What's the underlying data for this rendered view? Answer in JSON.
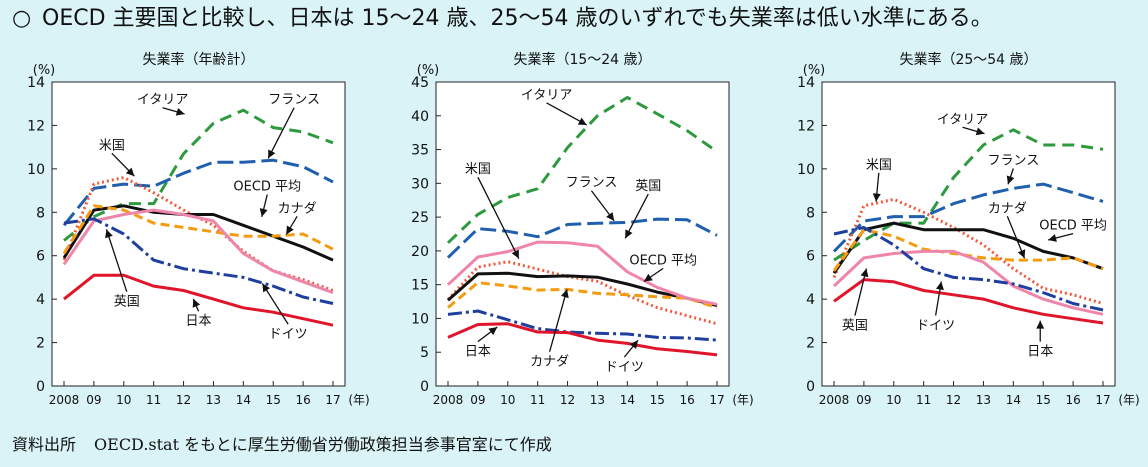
{
  "header": {
    "bullet": "○",
    "text": "OECD 主要国と比較し、日本は 15～24 歳、25～54 歳のいずれでも失業率は低い水準にある。"
  },
  "source": {
    "label": "資料出所",
    "text": "OECD.stat をもとに厚生労働省労働政策担当参事官室にて作成"
  },
  "chart_data": [
    {
      "type": "line",
      "title": "失業率（年齢計）",
      "ylabel": "(%)",
      "x_unit": "(年)",
      "categories": [
        "2008",
        "09",
        "10",
        "11",
        "12",
        "13",
        "14",
        "15",
        "16",
        "17"
      ],
      "ylim": [
        0,
        14
      ],
      "yticks": [
        0,
        2,
        4,
        6,
        8,
        10,
        12,
        14
      ],
      "grid": false,
      "series": [
        {
          "name": "イタリア",
          "color": "#2e9a3e",
          "dash": "12,7",
          "values": [
            6.7,
            7.8,
            8.4,
            8.4,
            10.7,
            12.1,
            12.7,
            11.9,
            11.7,
            11.2
          ]
        },
        {
          "name": "フランス",
          "color": "#1f5fae",
          "dash": "16,6",
          "values": [
            7.4,
            9.1,
            9.3,
            9.2,
            9.8,
            10.3,
            10.3,
            10.4,
            10.1,
            9.4
          ]
        },
        {
          "name": "米国",
          "color": "#ef5a3a",
          "dash": "2,3",
          "values": [
            5.8,
            9.3,
            9.6,
            8.9,
            8.1,
            7.4,
            6.2,
            5.3,
            4.9,
            4.4
          ]
        },
        {
          "name": "OECD 平均",
          "color": "#111111",
          "dash": "",
          "values": [
            5.9,
            8.1,
            8.3,
            8.0,
            7.9,
            7.9,
            7.4,
            6.9,
            6.4,
            5.8
          ]
        },
        {
          "name": "カナダ",
          "color": "#f39c12",
          "dash": "9,5",
          "values": [
            6.1,
            8.3,
            8.1,
            7.5,
            7.3,
            7.1,
            6.9,
            6.9,
            7.0,
            6.3
          ]
        },
        {
          "name": "英国",
          "color": "#ef86aa",
          "dash": "",
          "values": [
            5.6,
            7.6,
            7.9,
            8.1,
            7.9,
            7.6,
            6.1,
            5.3,
            4.8,
            4.3
          ]
        },
        {
          "name": "ドイツ",
          "color": "#1f3f9e",
          "dash": "14,4,3,4",
          "values": [
            7.5,
            7.7,
            7.0,
            5.8,
            5.4,
            5.2,
            5.0,
            4.6,
            4.1,
            3.8
          ]
        },
        {
          "name": "日本",
          "color": "#e0142a",
          "dash": "",
          "values": [
            4.0,
            5.1,
            5.1,
            4.6,
            4.4,
            4.0,
            3.6,
            3.4,
            3.1,
            2.8
          ]
        }
      ],
      "labels": [
        {
          "text": "イタリア",
          "x": 3.3,
          "y": 13.0,
          "ax": 4.1,
          "ay": 12.5
        },
        {
          "text": "フランス",
          "x": 7.7,
          "y": 13.0,
          "ax": 6.8,
          "ay": 10.4
        },
        {
          "text": "米国",
          "x": 1.6,
          "y": 10.9,
          "ax": 2.4,
          "ay": 9.6
        },
        {
          "text": "OECD 平均",
          "x": 6.8,
          "y": 9.0,
          "ax": 6.6,
          "ay": 7.7
        },
        {
          "text": "カナダ",
          "x": 7.8,
          "y": 8.0,
          "ax": 7.4,
          "ay": 6.9
        },
        {
          "text": "英国",
          "x": 2.1,
          "y": 3.7,
          "ax": 1.4,
          "ay": 7.3
        },
        {
          "text": "ドイツ",
          "x": 7.5,
          "y": 2.2,
          "ax": 6.6,
          "ay": 4.8
        },
        {
          "text": "日本",
          "x": 4.5,
          "y": 2.8,
          "ax": 4.3,
          "ay": 4.1
        }
      ]
    },
    {
      "type": "line",
      "title": "失業率（15～24 歳）",
      "ylabel": "(%)",
      "x_unit": "(年)",
      "categories": [
        "2008",
        "09",
        "10",
        "11",
        "12",
        "13",
        "14",
        "15",
        "16",
        "17"
      ],
      "ylim": [
        0,
        45
      ],
      "yticks": [
        0,
        5,
        10,
        15,
        20,
        25,
        30,
        35,
        40,
        45
      ],
      "grid": false,
      "series": [
        {
          "name": "イタリア",
          "color": "#2e9a3e",
          "dash": "12,7",
          "values": [
            21.2,
            25.4,
            27.9,
            29.2,
            35.3,
            40.0,
            42.7,
            40.3,
            37.8,
            34.7
          ]
        },
        {
          "name": "フランス",
          "color": "#1f5fae",
          "dash": "16,6",
          "values": [
            19.0,
            23.3,
            22.9,
            22.1,
            23.9,
            24.1,
            24.2,
            24.7,
            24.6,
            22.3
          ]
        },
        {
          "name": "米国",
          "color": "#ef5a3a",
          "dash": "2,3",
          "values": [
            12.8,
            17.6,
            18.4,
            17.3,
            16.2,
            15.5,
            13.4,
            11.6,
            10.4,
            9.2
          ]
        },
        {
          "name": "OECD 平均",
          "color": "#111111",
          "dash": "",
          "values": [
            12.7,
            16.6,
            16.7,
            16.2,
            16.3,
            16.1,
            15.1,
            13.9,
            13.0,
            11.9
          ]
        },
        {
          "name": "カナダ",
          "color": "#f39c12",
          "dash": "9,5",
          "values": [
            11.6,
            15.3,
            14.8,
            14.2,
            14.3,
            13.7,
            13.5,
            13.2,
            13.0,
            11.6
          ]
        },
        {
          "name": "英国",
          "color": "#ef86aa",
          "dash": "",
          "values": [
            15.0,
            19.1,
            19.9,
            21.3,
            21.2,
            20.7,
            16.9,
            14.6,
            13.0,
            12.1
          ]
        },
        {
          "name": "ドイツ",
          "color": "#1f3f9e",
          "dash": "14,4,3,4",
          "values": [
            10.6,
            11.1,
            9.8,
            8.5,
            8.0,
            7.8,
            7.7,
            7.2,
            7.1,
            6.8
          ]
        },
        {
          "name": "日本",
          "color": "#e0142a",
          "dash": "",
          "values": [
            7.2,
            9.1,
            9.2,
            8.0,
            7.9,
            6.8,
            6.3,
            5.5,
            5.1,
            4.6
          ]
        }
      ],
      "labels": [
        {
          "text": "イタリア",
          "x": 3.3,
          "y": 42.5,
          "ax": 4.7,
          "ay": 38.5
        },
        {
          "text": "米国",
          "x": 1.0,
          "y": 31.5,
          "ax": 2.4,
          "ay": 18.6
        },
        {
          "text": "フランス",
          "x": 4.8,
          "y": 29.5,
          "ax": 5.6,
          "ay": 24.2
        },
        {
          "text": "英国",
          "x": 6.7,
          "y": 29.0,
          "ax": 5.9,
          "ay": 21.6
        },
        {
          "text": "OECD 平均",
          "x": 7.2,
          "y": 18.0,
          "ax": 6.5,
          "ay": 15.3
        },
        {
          "text": "日本",
          "x": 1.0,
          "y": 4.5,
          "ax": 1.7,
          "ay": 8.9
        },
        {
          "text": "カナダ",
          "x": 3.4,
          "y": 3.0,
          "ax": 4.0,
          "ay": 14.6
        },
        {
          "text": "ドイツ",
          "x": 5.9,
          "y": 2.2,
          "ax": 6.4,
          "ay": 7.0
        }
      ]
    },
    {
      "type": "line",
      "title": "失業率（25～54 歳）",
      "ylabel": "(%)",
      "x_unit": "(年)",
      "categories": [
        "2008",
        "09",
        "10",
        "11",
        "12",
        "13",
        "14",
        "15",
        "16",
        "17"
      ],
      "ylim": [
        0,
        14
      ],
      "yticks": [
        0,
        2,
        4,
        6,
        8,
        10,
        12,
        14
      ],
      "grid": false,
      "series": [
        {
          "name": "イタリア",
          "color": "#2e9a3e",
          "dash": "12,7",
          "values": [
            5.8,
            6.7,
            7.5,
            7.5,
            9.6,
            11.1,
            11.8,
            11.1,
            11.1,
            10.9
          ]
        },
        {
          "name": "フランス",
          "color": "#1f5fae",
          "dash": "16,6",
          "values": [
            6.2,
            7.6,
            7.8,
            7.8,
            8.4,
            8.8,
            9.1,
            9.3,
            8.9,
            8.5
          ]
        },
        {
          "name": "米国",
          "color": "#ef5a3a",
          "dash": "2,3",
          "values": [
            5.0,
            8.3,
            8.6,
            8.0,
            7.3,
            6.5,
            5.4,
            4.5,
            4.2,
            3.8
          ]
        },
        {
          "name": "OECD 平均",
          "color": "#111111",
          "dash": "",
          "values": [
            5.2,
            7.2,
            7.5,
            7.2,
            7.2,
            7.2,
            6.8,
            6.2,
            5.9,
            5.4
          ]
        },
        {
          "name": "カナダ",
          "color": "#f39c12",
          "dash": "9,5",
          "values": [
            5.3,
            7.2,
            6.9,
            6.3,
            6.1,
            5.9,
            5.8,
            5.8,
            5.9,
            5.4
          ]
        },
        {
          "name": "英国",
          "color": "#ef86aa",
          "dash": "",
          "values": [
            4.6,
            5.9,
            6.1,
            6.2,
            6.2,
            5.7,
            4.6,
            4.0,
            3.6,
            3.3
          ]
        },
        {
          "name": "ドイツ",
          "color": "#1f3f9e",
          "dash": "14,4,3,4",
          "values": [
            7.0,
            7.3,
            6.5,
            5.4,
            5.0,
            4.9,
            4.7,
            4.3,
            3.8,
            3.5
          ]
        },
        {
          "name": "日本",
          "color": "#e0142a",
          "dash": "",
          "values": [
            3.9,
            4.9,
            4.8,
            4.4,
            4.2,
            4.0,
            3.6,
            3.3,
            3.1,
            2.9
          ]
        }
      ],
      "labels": [
        {
          "text": "イタリア",
          "x": 4.3,
          "y": 12.1,
          "ax": 5.1,
          "ay": 11.6
        },
        {
          "text": "米国",
          "x": 1.5,
          "y": 10.0,
          "ax": 1.4,
          "ay": 8.4
        },
        {
          "text": "フランス",
          "x": 6.0,
          "y": 10.2,
          "ax": 5.8,
          "ay": 9.2
        },
        {
          "text": "カナダ",
          "x": 5.8,
          "y": 8.0,
          "ax": 6.4,
          "ay": 5.8
        },
        {
          "text": "OECD 平均",
          "x": 8.0,
          "y": 7.2,
          "ax": 7.1,
          "ay": 6.7
        },
        {
          "text": "英国",
          "x": 0.7,
          "y": 2.6,
          "ax": 1.1,
          "ay": 5.5
        },
        {
          "text": "ドイツ",
          "x": 3.4,
          "y": 2.6,
          "ax": 3.6,
          "ay": 4.9
        },
        {
          "text": "日本",
          "x": 6.9,
          "y": 1.4,
          "ax": 6.9,
          "ay": 3.1
        }
      ]
    }
  ]
}
